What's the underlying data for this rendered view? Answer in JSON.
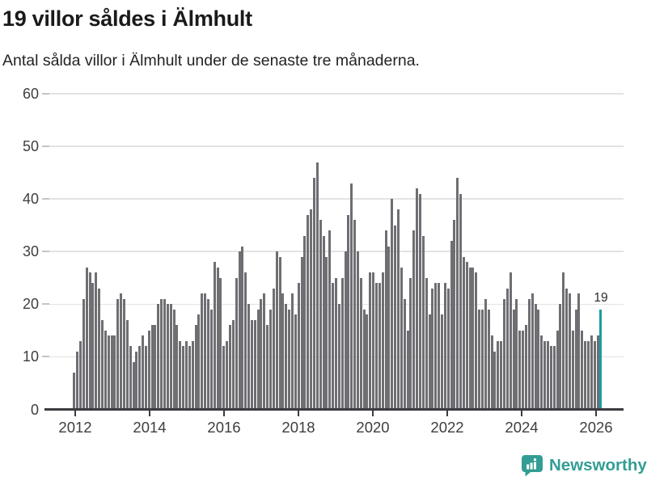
{
  "header": {
    "title": "19 villor såldes i Älmhult",
    "subtitle": "Antal sålda villor i Älmhult under de senaste tre månaderna."
  },
  "footer": {
    "logo_text": "Newsworthy"
  },
  "chart_data": {
    "type": "bar",
    "title": "19 villor såldes i Älmhult",
    "subtitle": "Antal sålda villor i Älmhult under de senaste tre månaderna.",
    "x_start": "2012-01",
    "x_freq": "monthly",
    "values": [
      7,
      11,
      13,
      21,
      27,
      26,
      24,
      26,
      23,
      17,
      15,
      14,
      14,
      14,
      21,
      22,
      21,
      17,
      12,
      9,
      11,
      12,
      14,
      12,
      15,
      16,
      16,
      20,
      21,
      21,
      20,
      20,
      19,
      16,
      13,
      12,
      13,
      12,
      13,
      16,
      18,
      22,
      22,
      21,
      19,
      28,
      27,
      25,
      12,
      13,
      16,
      17,
      25,
      30,
      31,
      26,
      20,
      17,
      17,
      19,
      21,
      22,
      16,
      19,
      23,
      30,
      29,
      22,
      20,
      19,
      22,
      18,
      24,
      29,
      33,
      37,
      38,
      44,
      47,
      36,
      33,
      29,
      34,
      24,
      25,
      20,
      25,
      30,
      37,
      43,
      36,
      30,
      25,
      19,
      18,
      26,
      26,
      24,
      24,
      26,
      34,
      31,
      40,
      35,
      38,
      27,
      21,
      15,
      25,
      34,
      42,
      41,
      33,
      25,
      18,
      23,
      24,
      24,
      18,
      24,
      23,
      32,
      36,
      44,
      41,
      29,
      28,
      27,
      27,
      26,
      19,
      19,
      21,
      19,
      14,
      11,
      13,
      13,
      21,
      23,
      26,
      19,
      21,
      15,
      15,
      16,
      21,
      22,
      20,
      19,
      14,
      13,
      13,
      12,
      12,
      15,
      20,
      26,
      23,
      22,
      15,
      19,
      22,
      15,
      13,
      13,
      14,
      13,
      14,
      19
    ],
    "highlight_index": 169,
    "highlight_value_label": "19",
    "yticks": [
      0,
      10,
      20,
      30,
      40,
      50,
      60
    ],
    "ylim": [
      0,
      60
    ],
    "xticks": [
      "2012",
      "2014",
      "2016",
      "2018",
      "2020",
      "2022",
      "2024",
      "2026"
    ],
    "bar_color": "#6e6e73",
    "highlight_color": "#189e9b",
    "grid": true,
    "legend": "none"
  }
}
